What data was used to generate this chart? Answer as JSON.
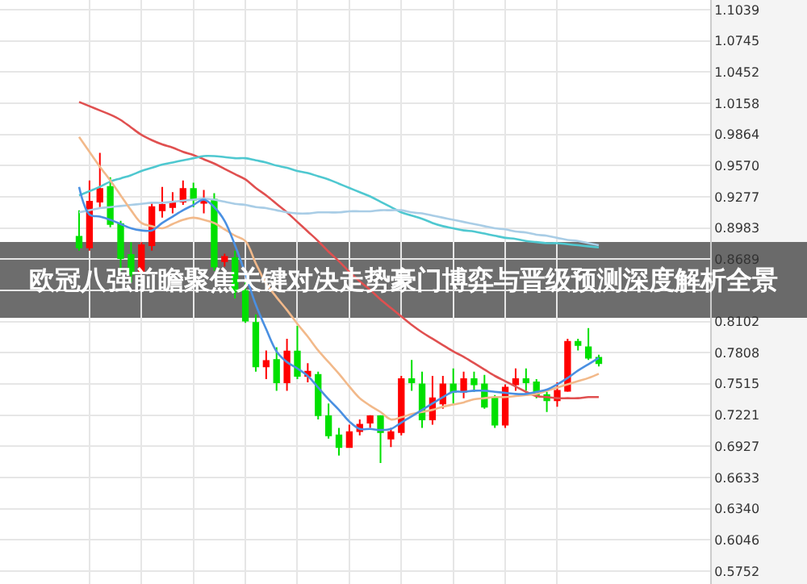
{
  "chart_data": {
    "type": "candlestick",
    "title": "欧冠八强前瞻聚焦关键对决走势豪门博弈与晋级预测深度解析全景",
    "categories": [
      null,
      null,
      null,
      null,
      null,
      null,
      null,
      null,
      null,
      null,
      null,
      null,
      null,
      null,
      null,
      null,
      null,
      null,
      null,
      null,
      null,
      null,
      null,
      null,
      null,
      null,
      null,
      null,
      null,
      null,
      null,
      null,
      null,
      null,
      null,
      null,
      null,
      null,
      null,
      null,
      null,
      null,
      null,
      null,
      null,
      null,
      null,
      null,
      null,
      null,
      null
    ],
    "ohlc": [
      [
        0.89,
        0.915,
        0.877,
        0.88
      ],
      [
        0.88,
        0.943,
        0.877,
        0.923
      ],
      [
        0.923,
        0.969,
        0.918,
        0.935
      ],
      [
        0.937,
        0.946,
        0.899,
        0.902
      ],
      [
        0.902,
        0.905,
        0.858,
        0.87
      ],
      [
        0.873,
        0.885,
        0.847,
        0.855
      ],
      [
        0.858,
        0.885,
        0.855,
        0.882
      ],
      [
        0.882,
        0.923,
        0.877,
        0.918
      ],
      [
        0.915,
        0.937,
        0.908,
        0.92
      ],
      [
        0.918,
        0.932,
        0.912,
        0.922
      ],
      [
        0.923,
        0.943,
        0.92,
        0.935
      ],
      [
        0.935,
        0.941,
        0.918,
        0.925
      ],
      [
        0.922,
        0.934,
        0.912,
        0.924
      ],
      [
        0.925,
        0.931,
        0.858,
        0.862
      ],
      [
        0.867,
        0.874,
        0.862,
        0.871
      ],
      [
        0.87,
        0.877,
        0.832,
        0.839
      ],
      [
        0.839,
        0.847,
        0.809,
        0.811
      ],
      [
        0.809,
        0.817,
        0.763,
        0.768
      ],
      [
        0.768,
        0.783,
        0.756,
        0.773
      ],
      [
        0.774,
        0.786,
        0.745,
        0.753
      ],
      [
        0.753,
        0.794,
        0.745,
        0.782
      ],
      [
        0.782,
        0.806,
        0.756,
        0.759
      ],
      [
        0.759,
        0.771,
        0.753,
        0.763
      ],
      [
        0.76,
        0.763,
        0.718,
        0.722
      ],
      [
        0.721,
        0.733,
        0.7,
        0.703
      ],
      [
        0.703,
        0.71,
        0.684,
        0.692
      ],
      [
        0.692,
        0.713,
        0.692,
        0.706
      ],
      [
        0.707,
        0.718,
        0.703,
        0.713
      ],
      [
        0.715,
        0.722,
        0.71,
        0.721
      ],
      [
        0.721,
        0.722,
        0.677,
        0.706
      ],
      [
        0.7,
        0.71,
        0.692,
        0.706
      ],
      [
        0.706,
        0.759,
        0.703,
        0.756
      ],
      [
        0.756,
        0.774,
        0.745,
        0.753
      ],
      [
        0.751,
        0.763,
        0.71,
        0.718
      ],
      [
        0.718,
        0.759,
        0.713,
        0.738
      ],
      [
        0.733,
        0.759,
        0.728,
        0.751
      ],
      [
        0.751,
        0.766,
        0.733,
        0.744
      ],
      [
        0.744,
        0.763,
        0.738,
        0.756
      ],
      [
        0.756,
        0.763,
        0.744,
        0.751
      ],
      [
        0.751,
        0.76,
        0.728,
        0.73
      ],
      [
        0.738,
        0.741,
        0.71,
        0.713
      ],
      [
        0.713,
        0.751,
        0.71,
        0.748
      ],
      [
        0.751,
        0.766,
        0.745,
        0.756
      ],
      [
        0.756,
        0.766,
        0.745,
        0.753
      ],
      [
        0.753,
        0.756,
        0.738,
        0.741
      ],
      [
        0.741,
        0.744,
        0.725,
        0.736
      ],
      [
        0.736,
        0.753,
        0.73,
        0.745
      ],
      [
        0.745,
        0.794,
        0.744,
        0.791
      ],
      [
        0.791,
        0.794,
        0.783,
        0.788
      ],
      [
        0.786,
        0.804,
        0.774,
        0.776
      ],
      [
        0.776,
        0.779,
        0.768,
        0.771
      ]
    ],
    "colors": [
      "#00e000",
      "#ff0000",
      "#ff0000",
      "#00e000",
      "#00e000",
      "#00e000",
      "#ff0000",
      "#ff0000",
      "#ff0000",
      "#ff0000",
      "#ff0000",
      "#00e000",
      "#ff0000",
      "#00e000",
      "#ff0000",
      "#00e000",
      "#00e000",
      "#00e000",
      "#ff0000",
      "#00e000",
      "#ff0000",
      "#00e000",
      "#ff0000",
      "#00e000",
      "#00e000",
      "#00e000",
      "#ff0000",
      "#ff0000",
      "#ff0000",
      "#00e000",
      "#ff0000",
      "#ff0000",
      "#00e000",
      "#00e000",
      "#ff0000",
      "#ff0000",
      "#00e000",
      "#ff0000",
      "#00e000",
      "#00e000",
      "#00e000",
      "#ff0000",
      "#ff0000",
      "#00e000",
      "#00e000",
      "#00e000",
      "#ff0000",
      "#ff0000",
      "#00e000",
      "#00e000",
      "#00e000"
    ],
    "series": [
      {
        "type": "line",
        "color": "#e05050",
        "values": [
          1.017,
          1.013,
          1.009,
          1.005,
          1.0,
          0.993,
          0.986,
          0.981,
          0.977,
          0.974,
          0.97,
          0.967,
          0.963,
          0.959,
          0.954,
          0.949,
          0.944,
          0.936,
          0.929,
          0.921,
          0.913,
          0.904,
          0.895,
          0.886,
          0.876,
          0.867,
          0.857,
          0.848,
          0.84,
          0.831,
          0.823,
          0.815,
          0.807,
          0.8,
          0.794,
          0.788,
          0.782,
          0.777,
          0.771,
          0.765,
          0.759,
          0.754,
          0.749,
          0.744,
          0.74,
          0.739,
          0.738,
          0.738,
          0.738,
          0.739,
          0.739
        ]
      },
      {
        "type": "line",
        "color": "#4fc8d0",
        "values": [
          0.929,
          0.933,
          0.937,
          0.942,
          0.945,
          0.948,
          0.952,
          0.955,
          0.958,
          0.96,
          0.962,
          0.964,
          0.966,
          0.966,
          0.965,
          0.964,
          0.964,
          0.962,
          0.96,
          0.957,
          0.955,
          0.952,
          0.95,
          0.947,
          0.944,
          0.94,
          0.936,
          0.932,
          0.928,
          0.923,
          0.918,
          0.913,
          0.91,
          0.907,
          0.903,
          0.9,
          0.898,
          0.896,
          0.895,
          0.893,
          0.891,
          0.889,
          0.888,
          0.886,
          0.885,
          0.884,
          0.884,
          0.883,
          0.882,
          0.881,
          0.88
        ]
      },
      {
        "type": "line",
        "color": "#a9cde6",
        "values": [
          0.913,
          0.915,
          0.917,
          0.918,
          0.919,
          0.92,
          0.921,
          0.922,
          0.922,
          0.923,
          0.924,
          0.925,
          0.926,
          0.925,
          0.923,
          0.921,
          0.92,
          0.918,
          0.917,
          0.915,
          0.913,
          0.912,
          0.912,
          0.913,
          0.913,
          0.913,
          0.914,
          0.914,
          0.914,
          0.915,
          0.915,
          0.915,
          0.913,
          0.912,
          0.91,
          0.908,
          0.906,
          0.904,
          0.902,
          0.9,
          0.898,
          0.897,
          0.895,
          0.894,
          0.892,
          0.891,
          0.889,
          0.887,
          0.886,
          0.884,
          0.882
        ]
      },
      {
        "type": "line",
        "color": "#f2b98a",
        "values": [
          0.984,
          0.97,
          0.956,
          0.943,
          0.929,
          0.915,
          0.903,
          0.9,
          0.898,
          0.902,
          0.906,
          0.908,
          0.906,
          0.903,
          0.897,
          0.891,
          0.886,
          0.865,
          0.846,
          0.833,
          0.821,
          0.808,
          0.796,
          0.783,
          0.772,
          0.761,
          0.749,
          0.738,
          0.731,
          0.725,
          0.718,
          0.72,
          0.723,
          0.725,
          0.727,
          0.73,
          0.732,
          0.734,
          0.737,
          0.738,
          0.739,
          0.739,
          0.74,
          0.741,
          0.742,
          0.745,
          0.748,
          0.751,
          0.754,
          0.757,
          0.761
        ]
      },
      {
        "type": "line",
        "color": "#4a90e2",
        "values": [
          0.937,
          0.911,
          0.909,
          0.906,
          0.902,
          0.898,
          0.896,
          0.896,
          0.903,
          0.909,
          0.915,
          0.92,
          0.925,
          0.918,
          0.905,
          0.882,
          0.855,
          0.826,
          0.803,
          0.782,
          0.772,
          0.766,
          0.759,
          0.748,
          0.737,
          0.727,
          0.716,
          0.709,
          0.709,
          0.708,
          0.709,
          0.715,
          0.721,
          0.727,
          0.733,
          0.739,
          0.744,
          0.744,
          0.745,
          0.745,
          0.744,
          0.743,
          0.742,
          0.742,
          0.744,
          0.746,
          0.751,
          0.757,
          0.764,
          0.77,
          0.776
        ]
      }
    ],
    "ylim": [
      0.563,
      1.113
    ],
    "yticks": [
      1.1039,
      1.0745,
      1.0452,
      1.0158,
      0.9864,
      {
        "value": 0.957,
        "label": "0.9570"
      },
      0.9277,
      0.8983,
      0.8689,
      {
        "value": 0.8396,
        "label": null
      },
      0.8102,
      0.7808,
      0.7515,
      0.7221,
      0.6927,
      0.6633,
      {
        "value": 0.634,
        "label": "0.6340"
      },
      0.6046,
      0.5752
    ],
    "tick_labels": "y",
    "grid": true
  }
}
